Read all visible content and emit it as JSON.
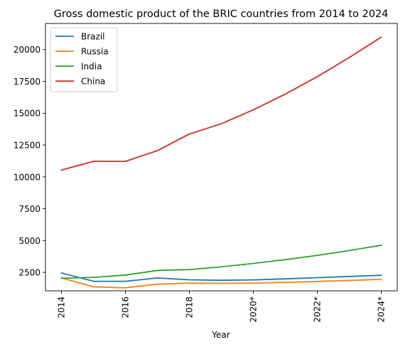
{
  "chart_data": {
    "type": "line",
    "title": "Gross domestic product of the BRIC countries from 2014 to 2024",
    "xlabel": "Year",
    "ylabel": "",
    "x": [
      2014,
      2015,
      2016,
      2017,
      2018,
      2019,
      2020,
      2021,
      2022,
      2023,
      2024
    ],
    "x_tick_values": [
      2014,
      2016,
      2018,
      2020,
      2022,
      2024
    ],
    "x_tick_labels": [
      "2014",
      "2016",
      "2018",
      "2020*",
      "2022*",
      "2024*"
    ],
    "xlim": [
      2013.5,
      2024.5
    ],
    "y_tick_values": [
      2500,
      5000,
      7500,
      10000,
      12500,
      15000,
      17500,
      20000
    ],
    "y_tick_labels": [
      "2500",
      "5000",
      "7500",
      "10000",
      "12500",
      "15000",
      "17500",
      "20000"
    ],
    "ylim": [
      1050,
      22050
    ],
    "grid": false,
    "legend_position": "top-left",
    "series": [
      {
        "name": "Brazil",
        "color": "#1f77b4",
        "values": [
          2456,
          1802,
          1796,
          2063,
          1917,
          1878,
          1909,
          1990,
          2085,
          2178,
          2271
        ]
      },
      {
        "name": "Russia",
        "color": "#ff7f0e",
        "values": [
          2064,
          1366,
          1285,
          1578,
          1655,
          1638,
          1656,
          1711,
          1788,
          1866,
          1955
        ]
      },
      {
        "name": "India",
        "color": "#2ca02c",
        "values": [
          2042,
          2104,
          2290,
          2652,
          2719,
          2937,
          3200,
          3496,
          3835,
          4214,
          4626
        ]
      },
      {
        "name": "China",
        "color": "#d62728",
        "values": [
          10535,
          11226,
          11222,
          12062,
          13368,
          14172,
          15270,
          16501,
          17872,
          19378,
          20977
        ]
      }
    ]
  }
}
